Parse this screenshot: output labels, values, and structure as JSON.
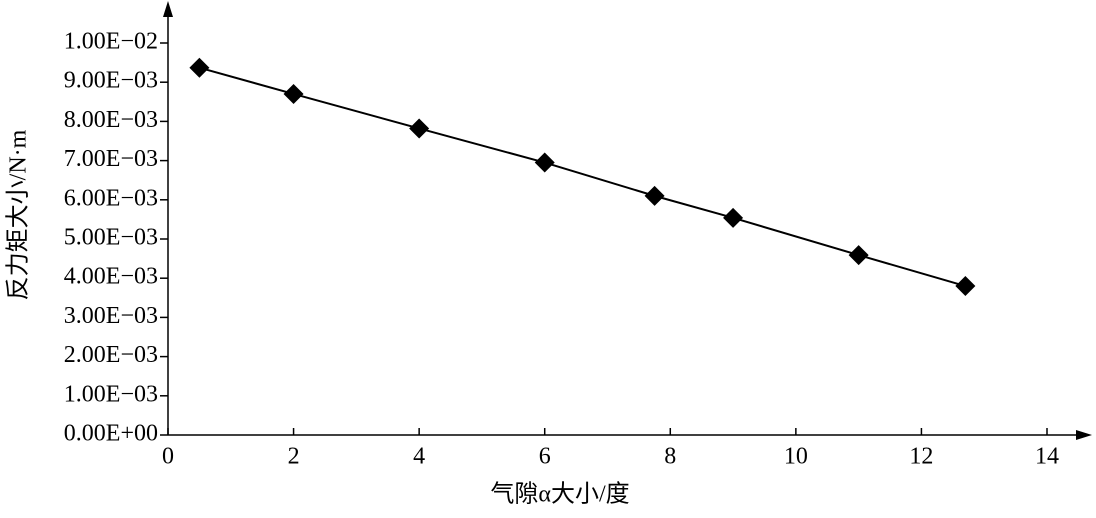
{
  "chart_data": {
    "type": "line",
    "x_label": "气隙α大小/度",
    "y_label": "反力矩大小/N·m",
    "x": [
      0.5,
      2,
      4,
      6,
      7.75,
      9,
      11,
      12.7
    ],
    "values": [
      0.00937,
      0.0087,
      0.00782,
      0.00695,
      0.0061,
      0.00554,
      0.00459,
      0.0038
    ],
    "color": "#000000",
    "marker": "diamond",
    "xlim": [
      0,
      14
    ],
    "xticks": [
      0,
      2,
      4,
      6,
      8,
      10,
      12,
      14
    ],
    "ylim": [
      0,
      0.01
    ],
    "yticks": [
      {
        "value": 0,
        "label": "0.00E+00"
      },
      {
        "value": 0.001,
        "label": "1.00E−03"
      },
      {
        "value": 0.002,
        "label": "2.00E−03"
      },
      {
        "value": 0.003,
        "label": "3.00E−03"
      },
      {
        "value": 0.004,
        "label": "4.00E−03"
      },
      {
        "value": 0.005,
        "label": "5.00E−03"
      },
      {
        "value": 0.006,
        "label": "6.00E−03"
      },
      {
        "value": 0.007,
        "label": "7.00E−03"
      },
      {
        "value": 0.008,
        "label": "8.00E−03"
      },
      {
        "value": 0.009,
        "label": "9.00E−03"
      },
      {
        "value": 0.01,
        "label": "1.00E−02"
      }
    ],
    "grid": false
  }
}
